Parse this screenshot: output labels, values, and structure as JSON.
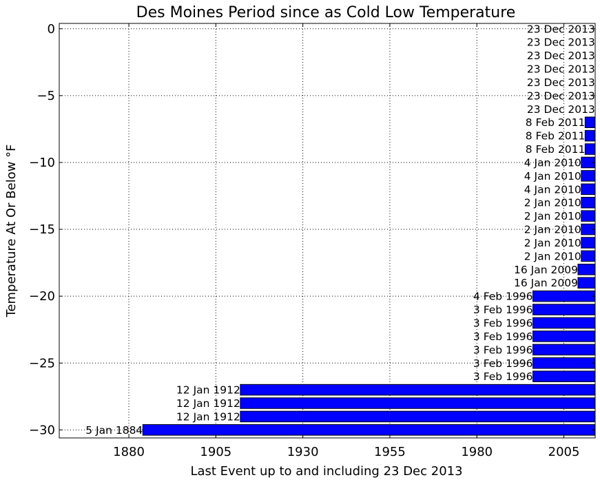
{
  "chart_data": {
    "type": "bar",
    "orientation": "horizontal",
    "title": "Des Moines Period since as Cold Low Temperature",
    "xlabel": "Last Event up to and including 23 Dec 2013",
    "ylabel": "Temperature At Or Below °F",
    "xlim": [
      1860,
      2014
    ],
    "ylim": [
      -30.6,
      0.4
    ],
    "xticks": [
      1880,
      1905,
      1930,
      1955,
      1980,
      2005
    ],
    "yticks": [
      0,
      -5,
      -10,
      -15,
      -20,
      -25,
      -30
    ],
    "ytick_labels": [
      "0",
      "−5",
      "−10",
      "−15",
      "−20",
      "−25",
      "−30"
    ],
    "grid": true,
    "bar_color": "#0000ff",
    "bars": [
      {
        "temp": 0,
        "date": "23 Dec 2013",
        "year": 2013.98
      },
      {
        "temp": -1,
        "date": "23 Dec 2013",
        "year": 2013.98
      },
      {
        "temp": -2,
        "date": "23 Dec 2013",
        "year": 2013.98
      },
      {
        "temp": -3,
        "date": "23 Dec 2013",
        "year": 2013.98
      },
      {
        "temp": -4,
        "date": "23 Dec 2013",
        "year": 2013.98
      },
      {
        "temp": -5,
        "date": "23 Dec 2013",
        "year": 2013.98
      },
      {
        "temp": -6,
        "date": "23 Dec 2013",
        "year": 2013.98
      },
      {
        "temp": -7,
        "date": "8 Feb 2011",
        "year": 2011.1
      },
      {
        "temp": -8,
        "date": "8 Feb 2011",
        "year": 2011.1
      },
      {
        "temp": -9,
        "date": "8 Feb 2011",
        "year": 2011.1
      },
      {
        "temp": -10,
        "date": "4 Jan 2010",
        "year": 2010.0
      },
      {
        "temp": -11,
        "date": "4 Jan 2010",
        "year": 2010.0
      },
      {
        "temp": -12,
        "date": "4 Jan 2010",
        "year": 2010.0
      },
      {
        "temp": -13,
        "date": "2 Jan 2010",
        "year": 2010.0
      },
      {
        "temp": -14,
        "date": "2 Jan 2010",
        "year": 2010.0
      },
      {
        "temp": -15,
        "date": "2 Jan 2010",
        "year": 2010.0
      },
      {
        "temp": -16,
        "date": "2 Jan 2010",
        "year": 2010.0
      },
      {
        "temp": -17,
        "date": "2 Jan 2010",
        "year": 2010.0
      },
      {
        "temp": -18,
        "date": "16 Jan 2009",
        "year": 2009.04
      },
      {
        "temp": -19,
        "date": "16 Jan 2009",
        "year": 2009.04
      },
      {
        "temp": -20,
        "date": "4 Feb 1996",
        "year": 1996.09
      },
      {
        "temp": -21,
        "date": "3 Feb 1996",
        "year": 1996.09
      },
      {
        "temp": -22,
        "date": "3 Feb 1996",
        "year": 1996.09
      },
      {
        "temp": -23,
        "date": "3 Feb 1996",
        "year": 1996.09
      },
      {
        "temp": -24,
        "date": "3 Feb 1996",
        "year": 1996.09
      },
      {
        "temp": -25,
        "date": "3 Feb 1996",
        "year": 1996.09
      },
      {
        "temp": -26,
        "date": "3 Feb 1996",
        "year": 1996.09
      },
      {
        "temp": -27,
        "date": "12 Jan 1912",
        "year": 1912.03
      },
      {
        "temp": -28,
        "date": "12 Jan 1912",
        "year": 1912.03
      },
      {
        "temp": -29,
        "date": "12 Jan 1912",
        "year": 1912.03
      },
      {
        "temp": -30,
        "date": "5 Jan 1884",
        "year": 1884.01
      }
    ]
  }
}
